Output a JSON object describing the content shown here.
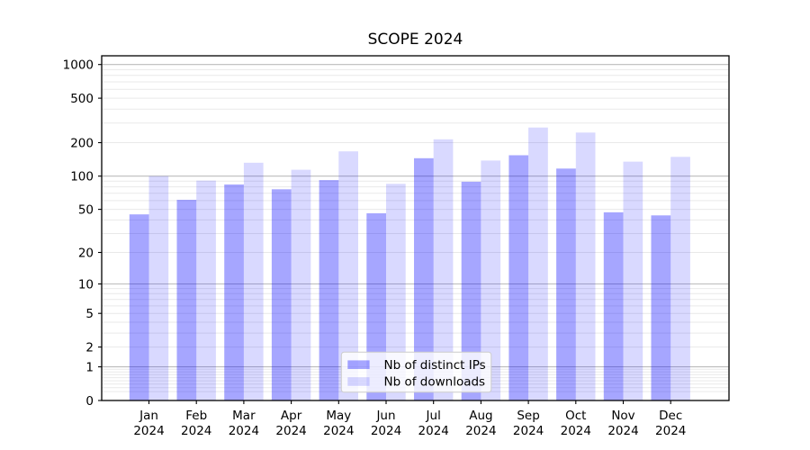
{
  "figure": {
    "title": "SCOPE 2024"
  },
  "chart_data": {
    "type": "bar",
    "title": "SCOPE 2024",
    "categories": [
      "Jan 2024",
      "Feb 2024",
      "Mar 2024",
      "Apr 2024",
      "May 2024",
      "Jun 2024",
      "Jul 2024",
      "Aug 2024",
      "Sep 2024",
      "Oct 2024",
      "Nov 2024",
      "Dec 2024"
    ],
    "months": [
      "Jan",
      "Feb",
      "Mar",
      "Apr",
      "May",
      "Jun",
      "Jul",
      "Aug",
      "Sep",
      "Oct",
      "Nov",
      "Dec"
    ],
    "year": "2024",
    "series": [
      {
        "name": "Nb of distinct IPs",
        "color": "#a6a6ff",
        "values": [
          45,
          61,
          84,
          76,
          92,
          46,
          145,
          89,
          154,
          117,
          47,
          44
        ]
      },
      {
        "name": "Nb of downloads",
        "color": "#d9d9ff",
        "values": [
          100,
          91,
          132,
          114,
          167,
          85,
          214,
          138,
          273,
          246,
          135,
          149
        ]
      }
    ],
    "xlabel": "",
    "ylabel": "",
    "yscale": "log1p",
    "ylim": [
      0,
      1200
    ],
    "yticks": [
      0,
      1,
      2,
      5,
      10,
      20,
      50,
      100,
      200,
      500,
      1000
    ],
    "grid": "on",
    "legend": {
      "position": "lower center",
      "labels": [
        "Nb of distinct IPs",
        "Nb of downloads"
      ]
    }
  },
  "colors": {
    "bar_ips": "rgba(0,0,255,0.35)",
    "bar_downloads": "rgba(0,0,255,0.15)",
    "grid_major": "#bcbcbc",
    "grid_minor": "#e9e9e9",
    "spine": "#000000",
    "legend_bg": "rgba(255,255,255,0.8)",
    "legend_border": "#cccccc",
    "text": "#000000",
    "background": "#ffffff"
  }
}
